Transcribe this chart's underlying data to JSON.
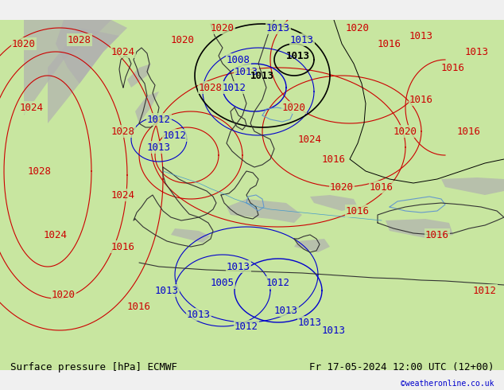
{
  "title_left": "Surface pressure [hPa] ECMWF",
  "title_right": "Fr 17-05-2024 12:00 UTC (12+00)",
  "credit": "©weatheronline.co.uk",
  "bg_color": "#c8e6a0",
  "land_color": "#c8e6a0",
  "sea_color": "#c8e6a0",
  "mountain_color": "#aaaaaa",
  "border_color": "#000000",
  "isobar_red_color": "#cc0000",
  "isobar_blue_color": "#0000cc",
  "isobar_black_color": "#000000",
  "label_fontsize": 9,
  "title_fontsize": 9,
  "figsize": [
    6.34,
    4.9
  ],
  "dpi": 100
}
